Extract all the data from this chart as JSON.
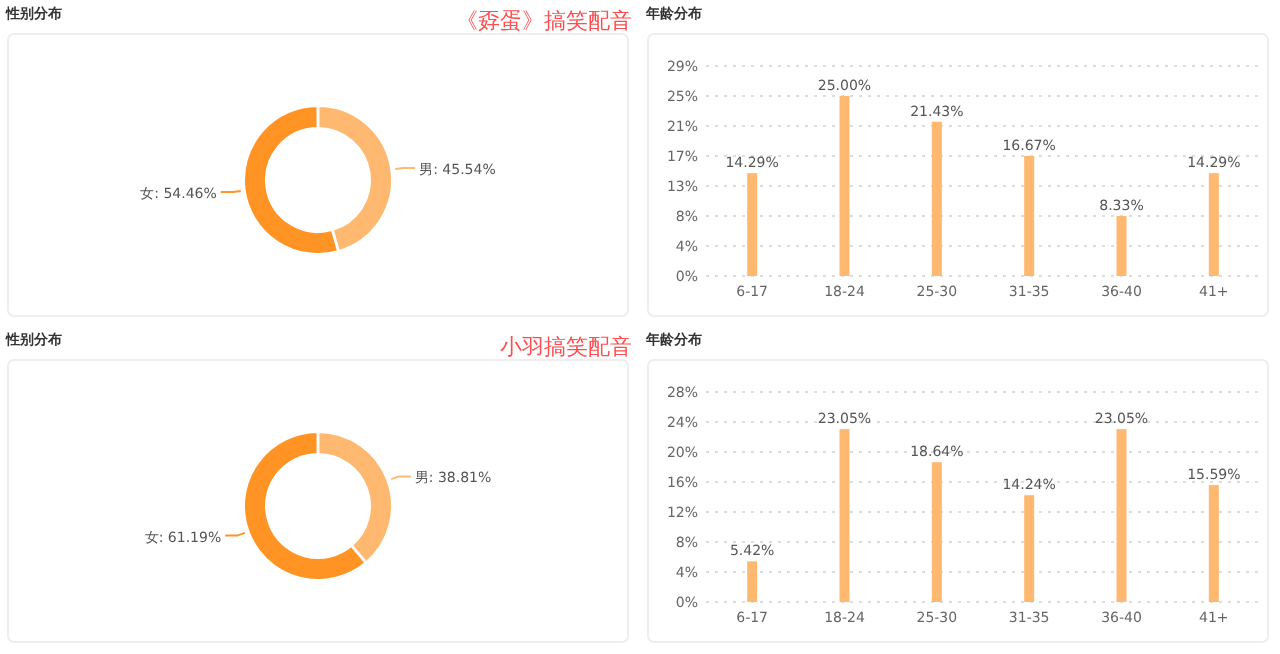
{
  "chart_data": [
    {
      "type": "donut",
      "title": "性别分布",
      "annotations": [
        "《孬蛋》搞笑配音"
      ],
      "categories": [
        "男",
        "女"
      ],
      "values": [
        45.54,
        54.46
      ],
      "colors": [
        "#ffb870",
        "#ff9324"
      ],
      "value_labels": [
        "45.54%",
        "54.46%"
      ]
    },
    {
      "type": "bar",
      "title": "年龄分布",
      "categories": [
        "6-17",
        "18-24",
        "25-30",
        "31-35",
        "36-40",
        "41+"
      ],
      "values": [
        14.29,
        25.0,
        21.43,
        16.67,
        8.33,
        14.29
      ],
      "color": "#ffb870",
      "value_labels": [
        "14.29%",
        "25.00%",
        "21.43%",
        "16.67%",
        "8.33%",
        "14.29%"
      ],
      "ylim": [
        0,
        29.17
      ],
      "yticks": [
        {
          "value": 0,
          "label": "0%"
        },
        {
          "value": 4.17,
          "label": "4%"
        },
        {
          "value": 8.33,
          "label": "8%"
        },
        {
          "value": 12.5,
          "label": "13%"
        },
        {
          "value": 16.67,
          "label": "17%"
        },
        {
          "value": 20.83,
          "label": "21%"
        },
        {
          "value": 25,
          "label": "25%"
        },
        {
          "value": 29.17,
          "label": "29%"
        }
      ],
      "grid": "y"
    },
    {
      "type": "donut",
      "title": "性别分布",
      "annotations": [
        "小羽搞笑配音"
      ],
      "categories": [
        "男",
        "女"
      ],
      "values": [
        38.81,
        61.19
      ],
      "colors": [
        "#ffb870",
        "#ff9324"
      ],
      "value_labels": [
        "38.81%",
        "61.19%"
      ]
    },
    {
      "type": "bar",
      "title": "年龄分布",
      "categories": [
        "6-17",
        "18-24",
        "25-30",
        "31-35",
        "36-40",
        "41+"
      ],
      "values": [
        5.42,
        23.05,
        18.64,
        14.24,
        23.05,
        15.59
      ],
      "color": "#ffb870",
      "value_labels": [
        "5.42%",
        "23.05%",
        "18.64%",
        "14.24%",
        "23.05%",
        "15.59%"
      ],
      "ylim": [
        0,
        28
      ],
      "yticks": [
        {
          "value": 0,
          "label": "0%"
        },
        {
          "value": 4,
          "label": "4%"
        },
        {
          "value": 8,
          "label": "8%"
        },
        {
          "value": 12,
          "label": "12%"
        },
        {
          "value": 16,
          "label": "16%"
        },
        {
          "value": 20,
          "label": "20%"
        },
        {
          "value": 24,
          "label": "24%"
        },
        {
          "value": 28,
          "label": "28%"
        }
      ],
      "grid": "y"
    }
  ]
}
